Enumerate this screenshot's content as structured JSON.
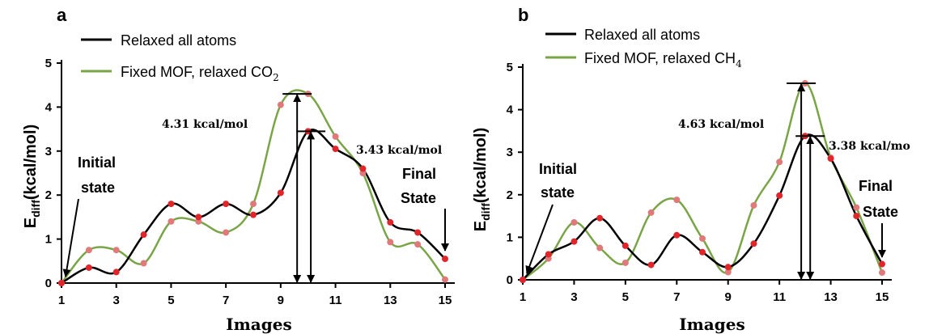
{
  "chart_data": [
    {
      "type": "line",
      "panel_label": "a",
      "x": [
        1,
        2,
        3,
        4,
        5,
        6,
        7,
        8,
        9,
        10,
        11,
        12,
        13,
        14,
        15
      ],
      "xticks": [
        "1",
        "3",
        "5",
        "7",
        "9",
        "11",
        "13",
        "15"
      ],
      "yticks": [
        "0",
        "1",
        "2",
        "3",
        "4",
        "5"
      ],
      "xlabel": "Images",
      "ylabel_main": "E",
      "ylabel_sub": "diff",
      "ylabel_rest": "(kcal/mol)",
      "xlim": [
        1,
        15
      ],
      "ylim": [
        0,
        5
      ],
      "series": [
        {
          "name": "Relaxed all atoms",
          "color": "#000000",
          "marker_color": "#e0262a",
          "values": [
            0.0,
            0.35,
            0.25,
            1.1,
            1.8,
            1.5,
            1.8,
            1.55,
            2.05,
            3.45,
            3.05,
            2.6,
            1.38,
            1.15,
            0.55
          ]
        },
        {
          "name": "Fixed MOF, relaxed CO",
          "name_sub": "2",
          "color": "#79a547",
          "marker_color": "#e07a7a",
          "values": [
            0.0,
            0.75,
            0.75,
            0.45,
            1.4,
            1.4,
            1.15,
            1.8,
            4.05,
            4.3,
            3.33,
            2.5,
            0.93,
            0.88,
            0.08
          ]
        }
      ],
      "annotations": {
        "barrier_green": "4.31 kcal/mol",
        "barrier_black": "3.43 kcal/mol",
        "initial_line1": "Initial",
        "initial_line2": "state",
        "final_line1": "Final",
        "final_line2": "State"
      }
    },
    {
      "type": "line",
      "panel_label": "b",
      "x": [
        1,
        2,
        3,
        4,
        5,
        6,
        7,
        8,
        9,
        10,
        11,
        12,
        13,
        14,
        15
      ],
      "xticks": [
        "1",
        "3",
        "5",
        "7",
        "9",
        "11",
        "13",
        "15"
      ],
      "yticks": [
        "0",
        "1",
        "2",
        "3",
        "4",
        "5"
      ],
      "xlabel": "Images",
      "ylabel_main": "E",
      "ylabel_sub": "diff",
      "ylabel_rest": "(kcal/mol)",
      "xlim": [
        1,
        15
      ],
      "ylim": [
        0,
        5
      ],
      "series": [
        {
          "name": "Relaxed all atoms",
          "color": "#000000",
          "marker_color": "#e0262a",
          "values": [
            0.0,
            0.6,
            0.9,
            1.45,
            0.8,
            0.35,
            1.05,
            0.65,
            0.3,
            0.85,
            1.98,
            3.38,
            2.85,
            1.5,
            0.37
          ]
        },
        {
          "name": "Fixed MOF, relaxed CH",
          "name_sub": "4",
          "color": "#79a547",
          "marker_color": "#e07a7a",
          "values": [
            0.0,
            0.5,
            1.35,
            0.75,
            0.4,
            1.58,
            1.88,
            0.97,
            0.18,
            1.75,
            2.77,
            4.62,
            2.87,
            1.7,
            0.17
          ]
        }
      ],
      "annotations": {
        "barrier_green": "4.63 kcal/mol",
        "barrier_black": "3.38 kcal/mo",
        "initial_line1": "Initial",
        "initial_line2": "state",
        "final_line1": "Final",
        "final_line2": "State"
      }
    }
  ]
}
